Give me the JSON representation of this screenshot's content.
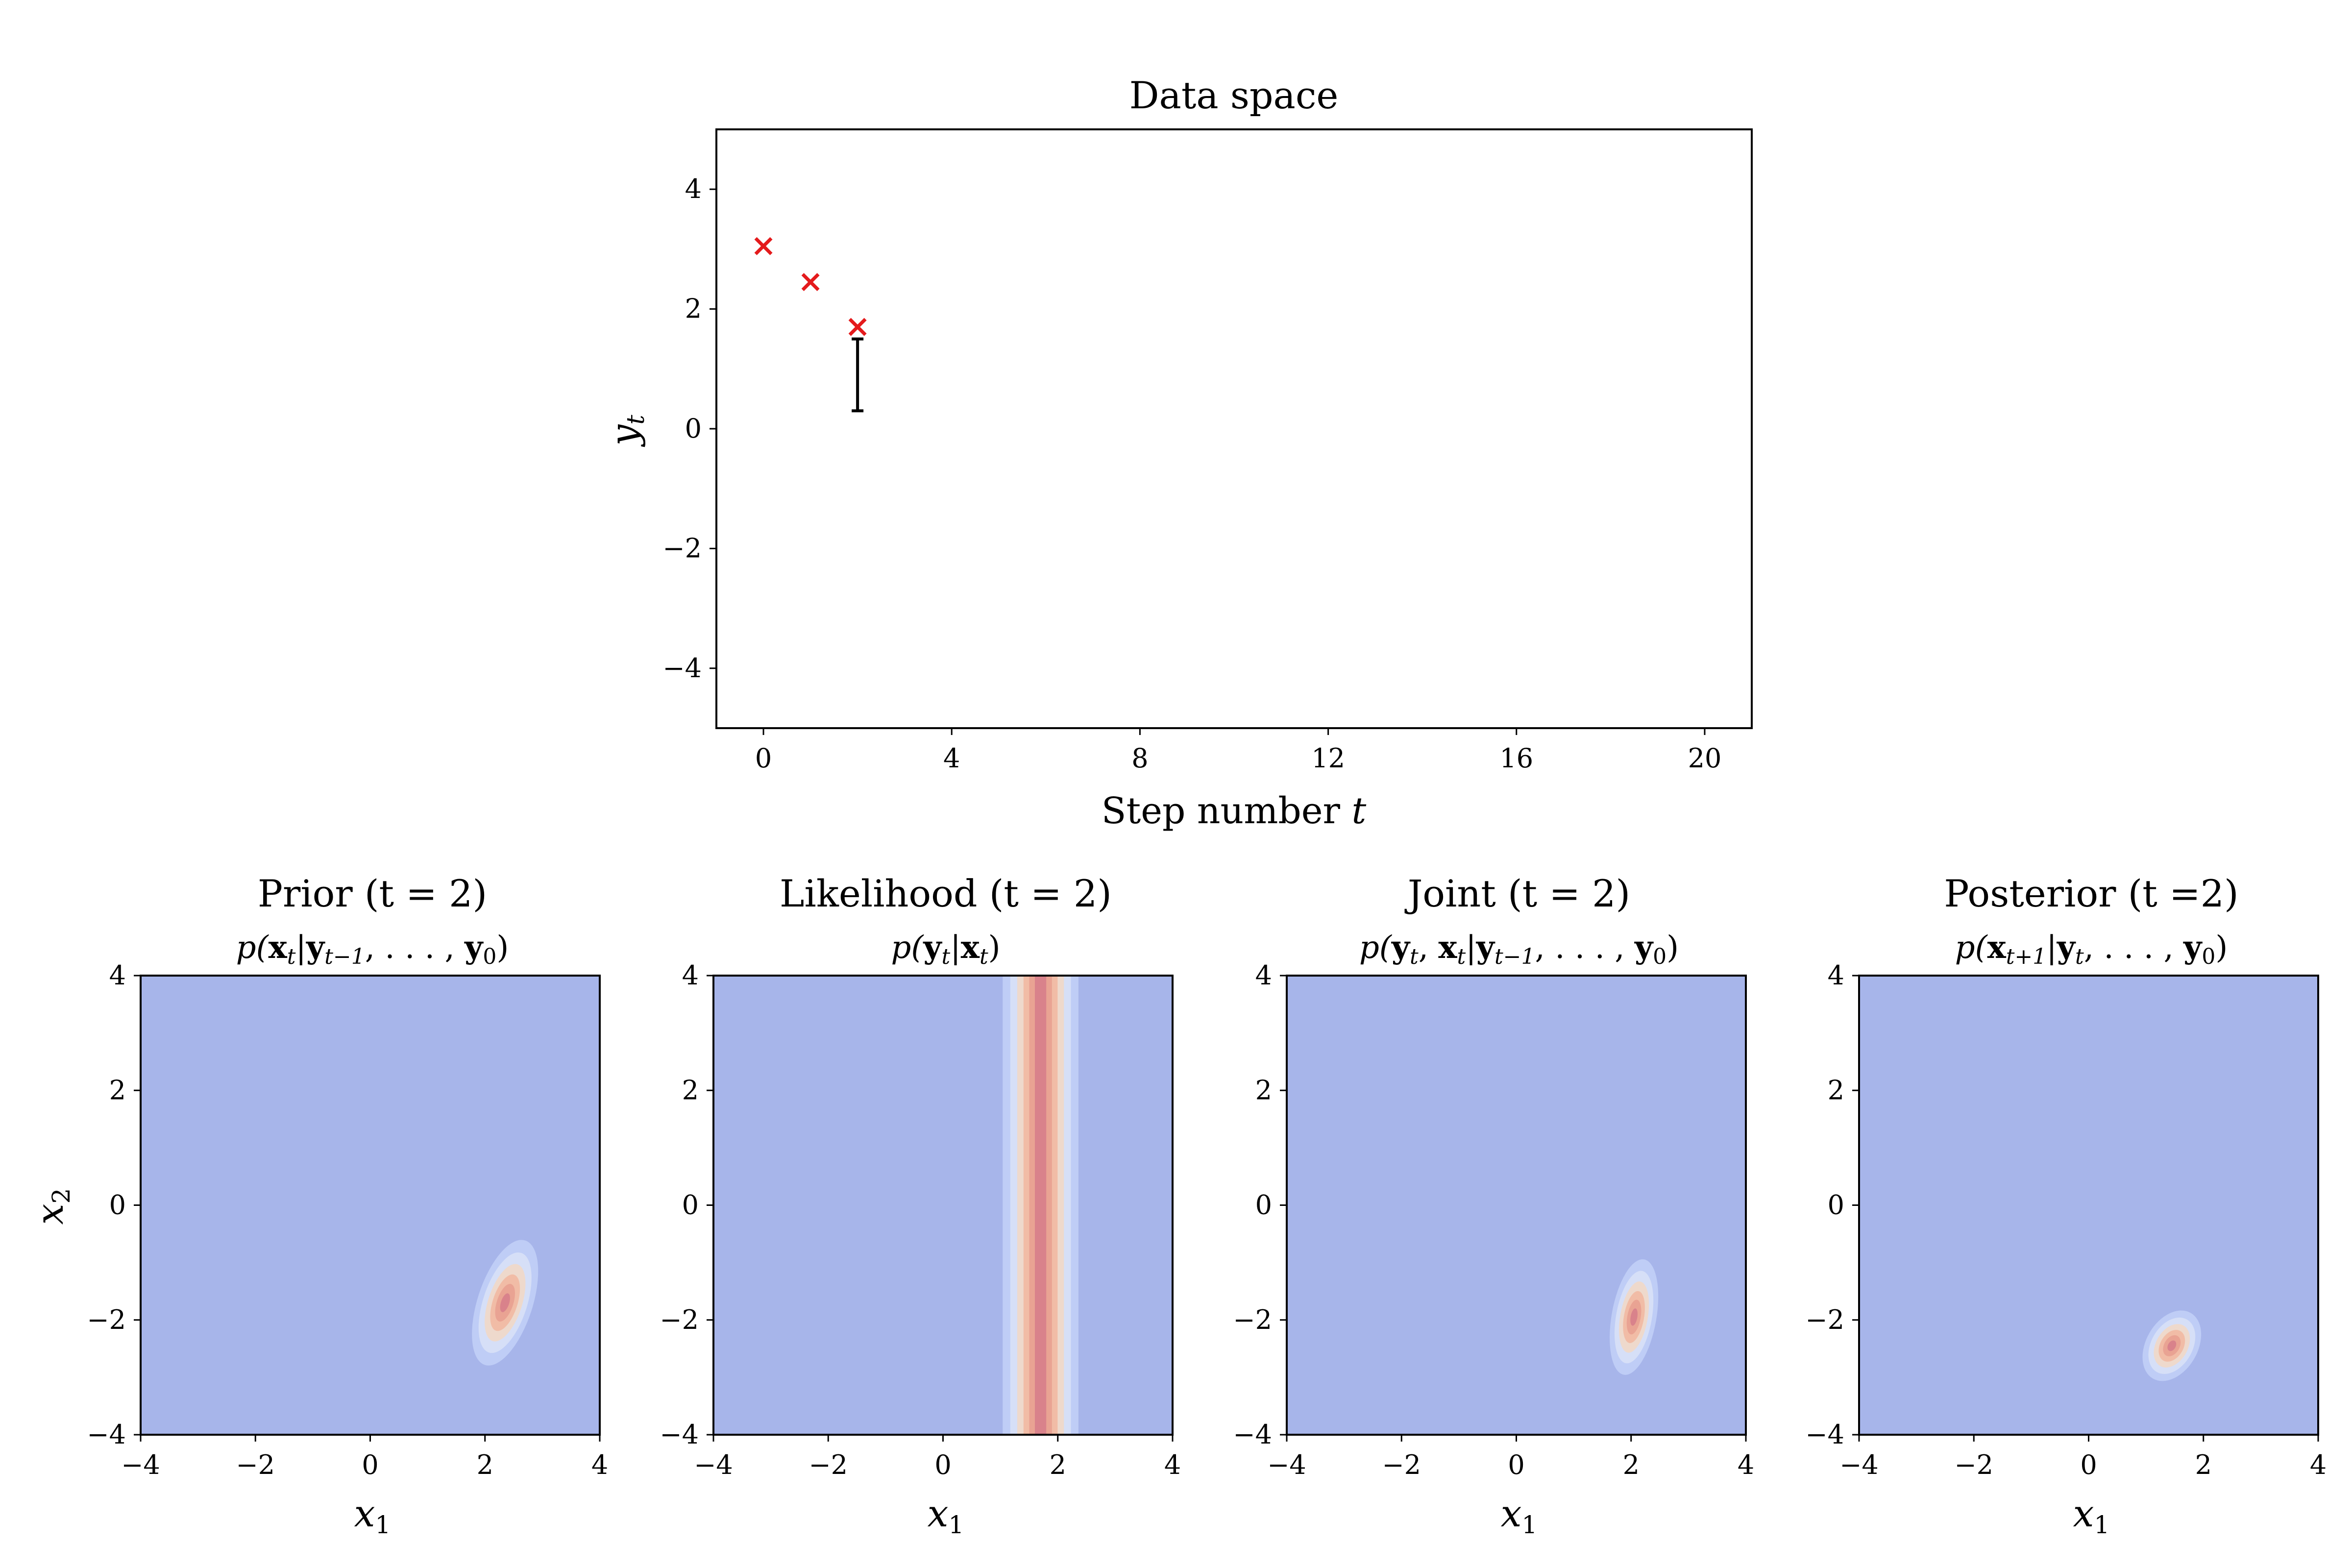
{
  "colors": {
    "background": "#a7b5ea",
    "marker": "#e41a1c",
    "errorbar": "#000000",
    "contour_levels": [
      "#bfcdf6",
      "#d6dff7",
      "#eed9cc",
      "#f1bca6",
      "#e9a393",
      "#d9828b"
    ]
  },
  "chart_data": [
    {
      "type": "scatter",
      "title": "Data space",
      "xlabel": "Step number ",
      "xlabel_var": "t",
      "ylabel": "y",
      "ylabel_sub": "t",
      "xlim": [
        -1,
        21
      ],
      "ylim": [
        -5,
        5
      ],
      "xticks": [
        "0",
        "4",
        "8",
        "12",
        "16",
        "20"
      ],
      "yticks": [
        "−4",
        "−2",
        "0",
        "2",
        "4"
      ],
      "xtick_values": [
        0,
        4,
        8,
        12,
        16,
        20
      ],
      "ytick_values": [
        -4,
        -2,
        0,
        2,
        4
      ],
      "points": [
        {
          "x": 0,
          "y": 3.05
        },
        {
          "x": 1,
          "y": 2.45
        },
        {
          "x": 2,
          "y": 1.7
        }
      ],
      "errorbar": {
        "x": 2,
        "y_low": 0.3,
        "y_high": 1.5
      }
    },
    {
      "type": "heatmap",
      "title": "Prior (t = 2)",
      "subtitle": "p(xt|yt−1, . . . , y0)",
      "xlabel": "x1",
      "ylabel": "x2",
      "xlim": [
        -4,
        4
      ],
      "ylim": [
        -4,
        4
      ],
      "xticks": [
        "−4",
        "−2",
        "0",
        "2",
        "4"
      ],
      "yticks": [
        "−4",
        "−2",
        "0",
        "2",
        "4"
      ],
      "gaussian": {
        "mean": [
          2.35,
          -1.7
        ],
        "sd_major": 0.38,
        "sd_minor": 0.16,
        "angle_deg": 72
      }
    },
    {
      "type": "heatmap",
      "title": "Likelihood (t = 2)",
      "subtitle": "p(yt|xt)",
      "xlabel": "x1",
      "ylabel": "",
      "xlim": [
        -4,
        4
      ],
      "ylim": [
        -4,
        4
      ],
      "xticks": [
        "−4",
        "−2",
        "0",
        "2",
        "4"
      ],
      "yticks": [
        "−4",
        "−2",
        "0",
        "2",
        "4"
      ],
      "band": {
        "center_x1": 1.7,
        "sd": 0.22
      }
    },
    {
      "type": "heatmap",
      "title": "Joint (t = 2)",
      "subtitle": "p(yt, xt|yt−1, . . . , y0)",
      "xlabel": "x1",
      "ylabel": "",
      "xlim": [
        -4,
        4
      ],
      "ylim": [
        -4,
        4
      ],
      "xticks": [
        "−4",
        "−2",
        "0",
        "2",
        "4"
      ],
      "yticks": [
        "−4",
        "−2",
        "0",
        "2",
        "4"
      ],
      "gaussian": {
        "mean": [
          2.05,
          -1.95
        ],
        "sd_major": 0.34,
        "sd_minor": 0.13,
        "angle_deg": 80
      }
    },
    {
      "type": "heatmap",
      "title": "Posterior (t =2)",
      "subtitle": "p(xt+1|yt, . . . , y0)",
      "xlabel": "x1",
      "ylabel": "",
      "xlim": [
        -4,
        4
      ],
      "ylim": [
        -4,
        4
      ],
      "xticks": [
        "−4",
        "−2",
        "0",
        "2",
        "4"
      ],
      "yticks": [
        "−4",
        "−2",
        "0",
        "2",
        "4"
      ],
      "gaussian": {
        "mean": [
          1.45,
          -2.45
        ],
        "sd_major": 0.22,
        "sd_minor": 0.15,
        "angle_deg": 60
      }
    }
  ]
}
